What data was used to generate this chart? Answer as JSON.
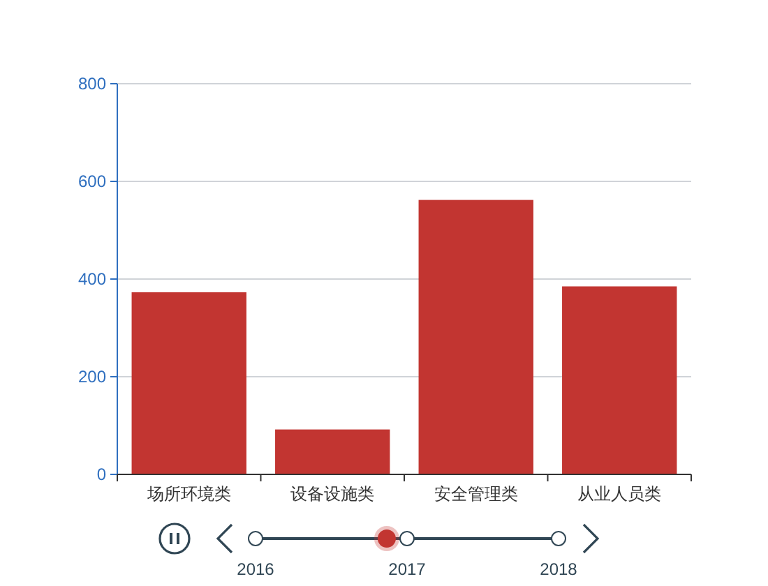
{
  "chart_data": {
    "type": "bar",
    "categories": [
      "场所环境类",
      "设备设施类",
      "安全管理类",
      "从业人员类"
    ],
    "series": [
      {
        "color": "#c23531",
        "values": [
          373,
          92,
          562,
          385
        ]
      }
    ],
    "ylim": [
      0,
      800
    ],
    "yticks": [
      0,
      200,
      400,
      600,
      800
    ],
    "grid": "y",
    "annotations": [
      "2016",
      "2017",
      "2018"
    ]
  }
}
